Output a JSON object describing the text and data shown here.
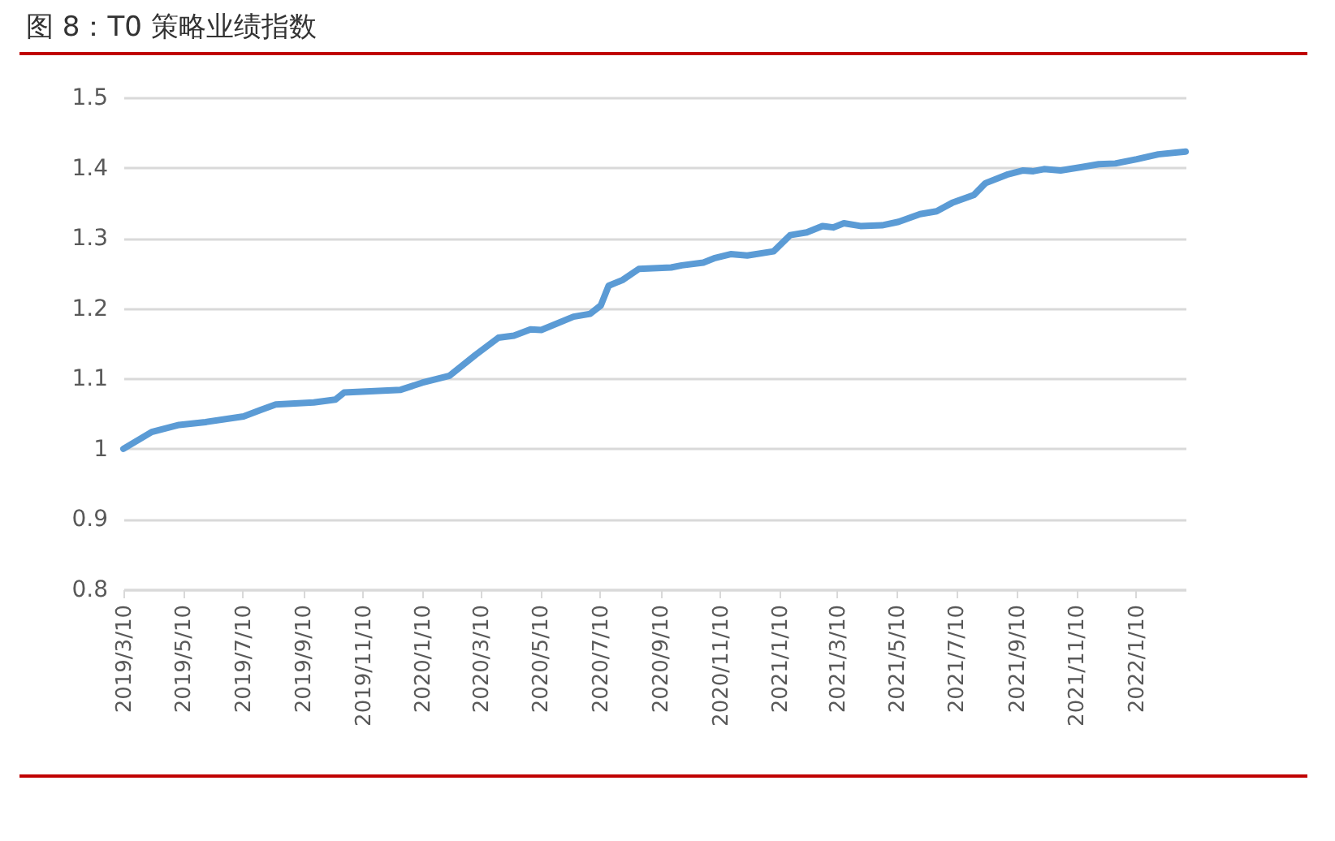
{
  "chart_data": {
    "type": "line",
    "title": "图 8：T0 策略业绩指数",
    "x": [
      "2019-03-10",
      "2019-04-08",
      "2019-05-06",
      "2019-06-02",
      "2019-07-11",
      "2019-07-28",
      "2019-08-13",
      "2019-09-21",
      "2019-10-13",
      "2019-10-22",
      "2019-12-19",
      "2020-01-10",
      "2020-02-07",
      "2020-03-05",
      "2020-03-28",
      "2020-04-13",
      "2020-04-30",
      "2020-05-11",
      "2020-06-13",
      "2020-06-30",
      "2020-07-11",
      "2020-07-19",
      "2020-08-02",
      "2020-08-19",
      "2020-09-21",
      "2020-10-02",
      "2020-10-24",
      "2020-11-04",
      "2020-11-21",
      "2020-12-08",
      "2021-01-04",
      "2021-01-21",
      "2021-02-07",
      "2021-02-23",
      "2021-03-06",
      "2021-03-17",
      "2021-04-03",
      "2021-04-25",
      "2021-05-12",
      "2021-06-03",
      "2021-06-20",
      "2021-07-06",
      "2021-07-28",
      "2021-08-09",
      "2021-08-31",
      "2021-09-16",
      "2021-09-27",
      "2021-10-08",
      "2021-10-25",
      "2021-11-16",
      "2021-12-03",
      "2021-12-20",
      "2022-01-11",
      "2022-02-02",
      "2022-03-02"
    ],
    "series": [
      {
        "color": "#5b9bd5",
        "values": [
          1.0,
          1.024,
          1.034,
          1.038,
          1.046,
          1.055,
          1.063,
          1.066,
          1.07,
          1.08,
          1.084,
          1.094,
          1.104,
          1.134,
          1.158,
          1.161,
          1.17,
          1.169,
          1.188,
          1.192,
          1.204,
          1.232,
          1.24,
          1.256,
          1.258,
          1.261,
          1.265,
          1.271,
          1.277,
          1.275,
          1.281,
          1.304,
          1.308,
          1.317,
          1.315,
          1.321,
          1.317,
          1.318,
          1.323,
          1.334,
          1.338,
          1.35,
          1.361,
          1.378,
          1.39,
          1.396,
          1.395,
          1.398,
          1.396,
          1.401,
          1.405,
          1.406,
          1.412,
          1.419,
          1.423
        ]
      }
    ],
    "xlim": [
      "2019-03-10",
      "2022-03-02"
    ],
    "xticks": [
      {
        "value": "2019-03-10",
        "label": "2019/3/10"
      },
      {
        "value": "2019-05-10",
        "label": "2019/5/10"
      },
      {
        "value": "2019-07-10",
        "label": "2019/7/10"
      },
      {
        "value": "2019-09-10",
        "label": "2019/9/10"
      },
      {
        "value": "2019-11-10",
        "label": "2019/11/10"
      },
      {
        "value": "2020-01-10",
        "label": "2020/1/10"
      },
      {
        "value": "2020-03-10",
        "label": "2020/3/10"
      },
      {
        "value": "2020-05-10",
        "label": "2020/5/10"
      },
      {
        "value": "2020-07-10",
        "label": "2020/7/10"
      },
      {
        "value": "2020-09-10",
        "label": "2020/9/10"
      },
      {
        "value": "2020-11-10",
        "label": "2020/11/10"
      },
      {
        "value": "2021-01-10",
        "label": "2021/1/10"
      },
      {
        "value": "2021-03-10",
        "label": "2021/3/10"
      },
      {
        "value": "2021-05-10",
        "label": "2021/5/10"
      },
      {
        "value": "2021-07-10",
        "label": "2021/7/10"
      },
      {
        "value": "2021-09-10",
        "label": "2021/9/10"
      },
      {
        "value": "2021-11-10",
        "label": "2021/11/10"
      },
      {
        "value": "2022-01-10",
        "label": "2022/1/10"
      }
    ],
    "ylim": [
      0.8,
      1.5
    ],
    "yticks": [
      0.8,
      0.9,
      1,
      1.1,
      1.2,
      1.3,
      1.4,
      1.5
    ],
    "grid": "y",
    "marker": "none",
    "line_style": "solid"
  }
}
